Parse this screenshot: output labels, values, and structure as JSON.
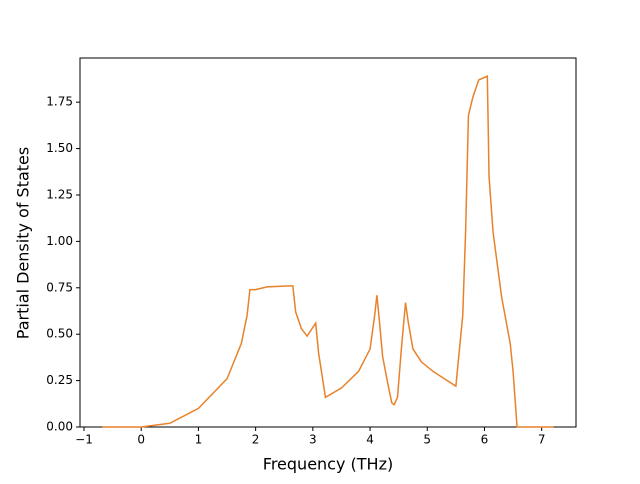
{
  "chart_data": {
    "type": "line",
    "xlabel": "Frequency (THz)",
    "ylabel": "Partial Density of States",
    "x": [
      -0.68,
      0,
      0.5,
      1,
      1.5,
      1.75,
      1.85,
      1.9,
      2.0,
      2.2,
      2.6,
      2.65,
      2.7,
      2.8,
      2.9,
      3.05,
      3.1,
      3.22,
      3.5,
      3.8,
      4.0,
      4.08,
      4.12,
      4.17,
      4.22,
      4.3,
      4.38,
      4.42,
      4.48,
      4.55,
      4.62,
      4.67,
      4.75,
      4.9,
      5.1,
      5.5,
      5.62,
      5.67,
      5.72,
      5.8,
      5.9,
      6.05,
      6.08,
      6.15,
      6.3,
      6.45,
      6.5,
      6.57,
      7.21
    ],
    "values": [
      0,
      0,
      0.02,
      0.1,
      0.26,
      0.45,
      0.6,
      0.74,
      0.74,
      0.755,
      0.76,
      0.76,
      0.62,
      0.53,
      0.49,
      0.56,
      0.4,
      0.16,
      0.21,
      0.3,
      0.42,
      0.6,
      0.71,
      0.55,
      0.38,
      0.25,
      0.13,
      0.12,
      0.16,
      0.43,
      0.67,
      0.56,
      0.42,
      0.35,
      0.3,
      0.22,
      0.6,
      1.05,
      1.68,
      1.78,
      1.87,
      1.89,
      1.35,
      1.05,
      0.7,
      0.45,
      0.3,
      0,
      0
    ],
    "color": "#e8822a",
    "xlim": [
      -1.07,
      7.6
    ],
    "ylim": [
      0,
      1.988
    ],
    "xticks": [
      {
        "value": -1,
        "label": "−1"
      },
      0,
      1,
      2,
      3,
      4,
      5,
      6,
      7
    ],
    "yticks": [
      {
        "value": 0,
        "label": "0.00"
      },
      0.25,
      {
        "value": 0.5,
        "label": "0.50"
      },
      0.75,
      {
        "value": 1,
        "label": "1.00"
      },
      1.25,
      {
        "value": 1.5,
        "label": "1.50"
      },
      1.75
    ]
  }
}
